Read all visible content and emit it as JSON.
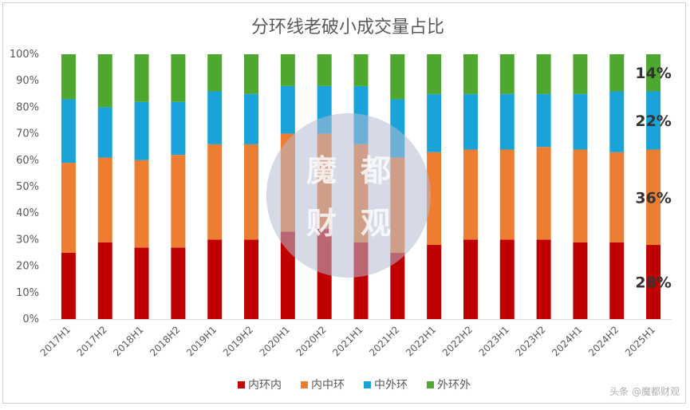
{
  "chart_data": {
    "type": "bar",
    "stacked": true,
    "title": "分环线老破小成交量占比",
    "xlabel": "",
    "ylabel": "",
    "ylim": [
      0,
      100
    ],
    "y_ticks": [
      "0%",
      "10%",
      "20%",
      "30%",
      "40%",
      "50%",
      "60%",
      "70%",
      "80%",
      "90%",
      "100%"
    ],
    "grid": false,
    "legend_position": "bottom",
    "categories": [
      "2017H1",
      "2017H2",
      "2018H1",
      "2018H2",
      "2019H1",
      "2019H2",
      "2020H1",
      "2020H2",
      "2021H1",
      "2021H2",
      "2022H1",
      "2022H2",
      "2023H1",
      "2023H2",
      "2024H1",
      "2024H2",
      "2025H1"
    ],
    "series": [
      {
        "name": "内环内",
        "color": "#c00000",
        "values": [
          25,
          29,
          27,
          27,
          30,
          30,
          33,
          34,
          29,
          25,
          28,
          30,
          30,
          30,
          29,
          29,
          28
        ]
      },
      {
        "name": "内中环",
        "color": "#ed7d31",
        "values": [
          34,
          32,
          33,
          35,
          36,
          36,
          37,
          36,
          37,
          36,
          35,
          34,
          34,
          35,
          35,
          34,
          36
        ]
      },
      {
        "name": "中外环",
        "color": "#1aa3d9",
        "values": [
          24,
          19,
          22,
          20,
          20,
          19,
          18,
          18,
          22,
          22,
          22,
          21,
          21,
          20,
          21,
          23,
          22
        ]
      },
      {
        "name": "外环外",
        "color": "#4ea72e",
        "values": [
          17,
          20,
          18,
          18,
          14,
          15,
          12,
          12,
          12,
          17,
          15,
          15,
          15,
          15,
          15,
          14,
          14
        ]
      }
    ],
    "annotations": [
      {
        "category": "2025H1",
        "series": "外环外",
        "text": "14%"
      },
      {
        "category": "2025H1",
        "series": "中外环",
        "text": "22%"
      },
      {
        "category": "2025H1",
        "series": "内中环",
        "text": "36%"
      },
      {
        "category": "2025H1",
        "series": "内环内",
        "text": "28%"
      }
    ]
  },
  "watermark": {
    "chars": [
      "魔",
      "都",
      "财",
      "观"
    ],
    "footer": "头条 @魔都财观"
  }
}
